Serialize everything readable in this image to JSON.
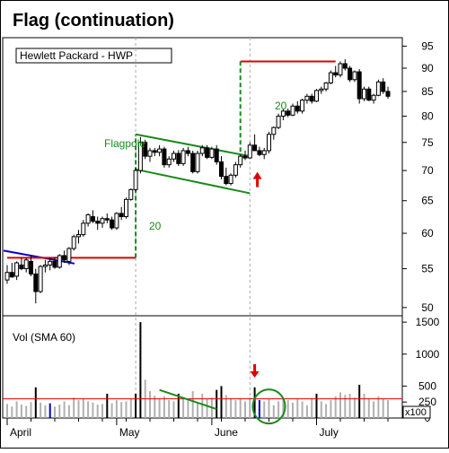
{
  "title": "Flag (continuation)",
  "subtitle": "Hewlett Packard - HWP",
  "colors": {
    "up_candle": "#ffffff",
    "down_candle": "#000000",
    "flag": "#1a8a1a",
    "target": "#dd0000",
    "trend": "#0000cc",
    "sma": "#dd0000",
    "volume_gray": "#b0b0b0",
    "volume_black": "#000000",
    "volume_blue": "#0000cc",
    "grid": "#aaaaaa"
  },
  "annotations": {
    "flagpole": "Flagpole",
    "move_1": "20",
    "move_2": "20",
    "volume_label": "Vol (SMA 60)",
    "volume_multiplier": "x100"
  },
  "chart_data": [
    {
      "type": "candlestick",
      "title": "Flag (continuation)",
      "subtitle": "Hewlett Packard - HWP",
      "y_scale": "log",
      "ylim": [
        49,
        97
      ],
      "y_ticks": [
        50,
        55,
        60,
        65,
        70,
        75,
        80,
        85,
        90,
        95
      ],
      "x_labels": [
        "April",
        "May",
        "June",
        "July"
      ],
      "x_label_index": [
        0,
        23,
        43,
        65
      ],
      "ohlc": [
        [
          53.5,
          55.5,
          53,
          54.5
        ],
        [
          54.5,
          55.8,
          53.8,
          53.9
        ],
        [
          54,
          56,
          53.5,
          55.8
        ],
        [
          55.5,
          56.5,
          54.8,
          55
        ],
        [
          55,
          56.5,
          54.5,
          56.2
        ],
        [
          56,
          56.8,
          54,
          54.3
        ],
        [
          54.3,
          55,
          50.5,
          52
        ],
        [
          52,
          55.5,
          51.8,
          55.3
        ],
        [
          55.3,
          56.2,
          54.5,
          55.5
        ],
        [
          55.5,
          56.5,
          54.8,
          56
        ],
        [
          56,
          56.6,
          55,
          55.2
        ],
        [
          55.2,
          57,
          55,
          56.8
        ],
        [
          56.8,
          57.5,
          55.8,
          56.2
        ],
        [
          56,
          58,
          55.5,
          57.8
        ],
        [
          57.8,
          59.8,
          57.5,
          59.5
        ],
        [
          59.5,
          60.5,
          58.5,
          59.8
        ],
        [
          59.8,
          62,
          59.5,
          61.5
        ],
        [
          61.5,
          63,
          61,
          62.8
        ],
        [
          62.5,
          63.5,
          61.5,
          61.8
        ],
        [
          61.8,
          62.5,
          60.5,
          61.5
        ],
        [
          61.5,
          62.5,
          60.8,
          62.2
        ],
        [
          62.2,
          63,
          61.5,
          62
        ],
        [
          62,
          62.5,
          60.5,
          60.8
        ],
        [
          60.8,
          63.2,
          60.5,
          63
        ],
        [
          63,
          64,
          62,
          62.5
        ],
        [
          62.5,
          65.5,
          62.2,
          65.2
        ],
        [
          65.2,
          67,
          65,
          66.8
        ],
        [
          66.8,
          70.5,
          66.5,
          70
        ],
        [
          70,
          76,
          69.5,
          75
        ],
        [
          75,
          75.5,
          72,
          72.5
        ],
        [
          72.5,
          74,
          71.5,
          73.5
        ],
        [
          73.5,
          74,
          72.5,
          73.2
        ],
        [
          73.2,
          74.5,
          72.5,
          73.8
        ],
        [
          73.8,
          74.2,
          70.5,
          71
        ],
        [
          71,
          72.5,
          70.5,
          72
        ],
        [
          72,
          73.5,
          71.5,
          73
        ],
        [
          73,
          73.6,
          70.8,
          71.2
        ],
        [
          71.2,
          74,
          70.8,
          73.5
        ],
        [
          73.5,
          74.2,
          72.5,
          73
        ],
        [
          73,
          73.5,
          69.5,
          69.8
        ],
        [
          69.8,
          73.5,
          69.5,
          73
        ],
        [
          73,
          74.5,
          72.5,
          74
        ],
        [
          74,
          74.5,
          72,
          72.3
        ],
        [
          72.3,
          74.2,
          72,
          73.8
        ],
        [
          73.8,
          74.5,
          71,
          71.5
        ],
        [
          71.5,
          72.5,
          68.5,
          69
        ],
        [
          69,
          70.5,
          67.5,
          67.8
        ],
        [
          67.8,
          69.5,
          67.5,
          69.2
        ],
        [
          69.2,
          71.5,
          68.8,
          71
        ],
        [
          71,
          72.8,
          70.5,
          72.5
        ],
        [
          72.5,
          73.5,
          71.8,
          72.2
        ],
        [
          72.2,
          75,
          72,
          74.5
        ],
        [
          74.5,
          76.5,
          73.8,
          73.5
        ],
        [
          73.5,
          74.2,
          72.5,
          72.8
        ],
        [
          72.8,
          74,
          72,
          73.5
        ],
        [
          73.5,
          77,
          73,
          76.5
        ],
        [
          76.5,
          78,
          75.5,
          77.8
        ],
        [
          77.8,
          80.5,
          77.5,
          80
        ],
        [
          80,
          81.5,
          79.2,
          81
        ],
        [
          81,
          81.5,
          79.8,
          80.2
        ],
        [
          80.2,
          82.5,
          80,
          82
        ],
        [
          82,
          83,
          80.5,
          81
        ],
        [
          81,
          83.5,
          80.5,
          83.2
        ],
        [
          83.2,
          84.5,
          82.5,
          84
        ],
        [
          84,
          84.5,
          82.5,
          83
        ],
        [
          83,
          85.5,
          82.8,
          85.2
        ],
        [
          85.2,
          86,
          84.5,
          85.5
        ],
        [
          85.5,
          87,
          85,
          86.8
        ],
        [
          86.8,
          89.5,
          86.5,
          89
        ],
        [
          89,
          90.5,
          88,
          88.5
        ],
        [
          88.5,
          91.5,
          88,
          91
        ],
        [
          91,
          92,
          89.5,
          90
        ],
        [
          90,
          90.5,
          87,
          87.5
        ],
        [
          87.5,
          89.5,
          87,
          89.2
        ],
        [
          89.2,
          89.8,
          82.5,
          83.5
        ],
        [
          83.5,
          86,
          83,
          85.5
        ],
        [
          85.5,
          86,
          83,
          83.2
        ],
        [
          83.2,
          84.5,
          82.5,
          84.2
        ],
        [
          84.2,
          87.5,
          84,
          87
        ],
        [
          87,
          87.8,
          84.5,
          85
        ],
        [
          85,
          86,
          83.5,
          84
        ]
      ],
      "flagpole": {
        "start_index": 27,
        "low": 56.5,
        "high": 76.5
      },
      "flag_channel": {
        "upper": {
          "from": [
            27,
            76.5
          ],
          "to": [
            51,
            72.5
          ]
        },
        "lower": {
          "from": [
            27,
            70.2
          ],
          "to": [
            51,
            66.2
          ]
        }
      },
      "breakout_index": 52,
      "moves": {
        "base_line": {
          "from_index": 0,
          "to_index": 27,
          "value": 56.5
        },
        "target_line": {
          "from_index": 49,
          "to_index": 69,
          "value": 91.5
        },
        "target_leg": {
          "index": 49,
          "low": 72,
          "high": 91.5
        }
      },
      "trendline": {
        "from": [
          0,
          57.5
        ],
        "to": [
          13,
          55.7
        ]
      },
      "vertical_markers": [
        27,
        51
      ]
    },
    {
      "type": "bar",
      "name": "Vol (SMA 60)",
      "unit": "x100",
      "ylim": [
        0,
        1600
      ],
      "y_ticks": [
        0,
        250,
        500,
        1000,
        1500
      ],
      "sma": 300,
      "values": [
        220,
        180,
        260,
        210,
        190,
        250,
        480,
        240,
        200,
        230,
        180,
        210,
        260,
        200,
        320,
        280,
        300,
        260,
        240,
        210,
        220,
        380,
        230,
        280,
        250,
        260,
        310,
        380,
        1500,
        600,
        420,
        350,
        300,
        340,
        280,
        260,
        380,
        300,
        280,
        420,
        240,
        380,
        300,
        320,
        440,
        500,
        360,
        310,
        280,
        300,
        260,
        320,
        480,
        280,
        260,
        300,
        200,
        260,
        300,
        280,
        240,
        300,
        260,
        200,
        310,
        380,
        260,
        220,
        280,
        340,
        400,
        360,
        380,
        320,
        520,
        380,
        300,
        260,
        340,
        300,
        280
      ],
      "black_indices": [
        6,
        21,
        27,
        28,
        36,
        44,
        45,
        52,
        65,
        74
      ],
      "blue_indices": [
        9,
        53
      ],
      "downtrend_volume": {
        "from": [
          32,
          440
        ],
        "to": [
          44,
          140
        ]
      },
      "circle_center_index": 55,
      "arrow_index": 52
    }
  ]
}
